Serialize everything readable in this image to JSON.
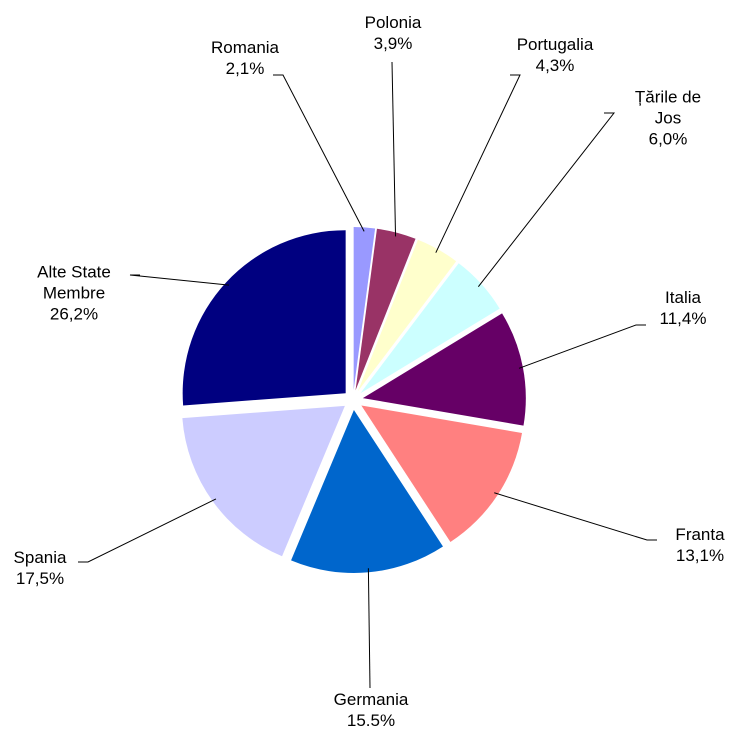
{
  "chart_data": {
    "type": "pie",
    "categories": [
      "Romania",
      "Polonia",
      "Portugalia",
      "Țările de Jos",
      "Italia",
      "Franta",
      "Germania",
      "Spania",
      "Alte State Membre"
    ],
    "values": [
      2.1,
      3.9,
      4.3,
      6.0,
      11.4,
      13.1,
      15.5,
      17.5,
      26.2
    ],
    "value_labels": [
      "2,1%",
      "3,9%",
      "4,3%",
      "6,0%",
      "11,4%",
      "13,1%",
      "15.5%",
      "17,5%",
      "26,2%"
    ],
    "colors": [
      "#9999ff",
      "#993366",
      "#ffffcc",
      "#ccffff",
      "#660066",
      "#ff8080",
      "#0066cc",
      "#ccccff",
      "#000080"
    ]
  }
}
